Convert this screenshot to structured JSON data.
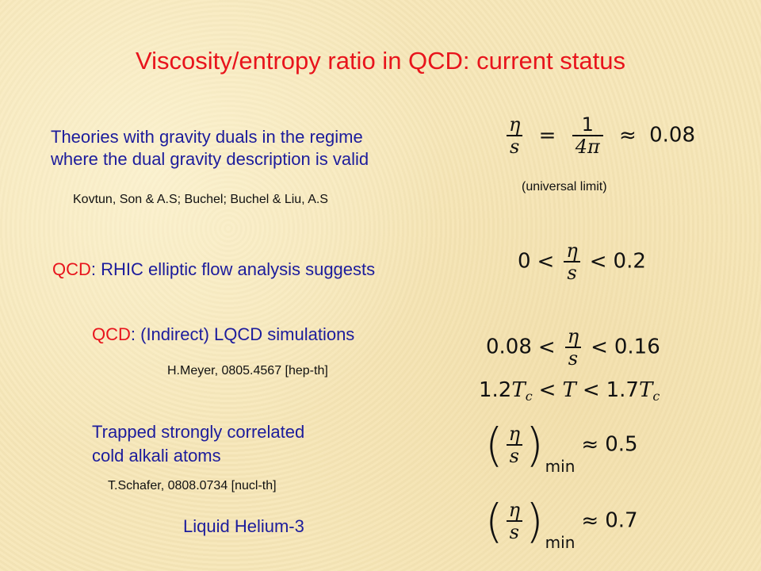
{
  "title": "Viscosity/entropy ratio in QCD: current status",
  "colors": {
    "title": "#e8141c",
    "text_blue": "#1c1c9c",
    "text_red": "#e8141c",
    "background": "#f7e7b8"
  },
  "gravity": {
    "line1": "Theories with gravity duals in the regime",
    "line2": "where the dual gravity description is valid",
    "ref": "Kovtun, Son & A.S; Buchel; Buchel & Liu, A.S",
    "eq": {
      "num": "η",
      "den": "s",
      "eq_sign": "=",
      "c_num": "1",
      "c_den": "4π",
      "approx": "≈",
      "value": "0.08"
    },
    "note": "(universal limit)"
  },
  "rhic": {
    "prefix": "QCD",
    "text": ": RHIC elliptic flow analysis suggests",
    "eq": {
      "lower": "0",
      "lt1": "<",
      "num": "η",
      "den": "s",
      "lt2": "<",
      "upper": "0.2"
    }
  },
  "lqcd": {
    "prefix": "QCD",
    "text": ": (Indirect) LQCD simulations",
    "ref": "H.Meyer, 0805.4567 [hep-th]",
    "eq": {
      "lower": "0.08",
      "lt1": "<",
      "num": "η",
      "den": "s",
      "lt2": "<",
      "upper": "0.16"
    },
    "temp": {
      "c1": "1.2",
      "tc": "T",
      "sub": "c",
      "lt1": "<",
      "t": "T",
      "lt2": "<",
      "c2": "1.7"
    }
  },
  "atoms": {
    "line1": "Trapped strongly correlated",
    "line2": "cold alkali atoms",
    "ref": "T.Schafer, 0808.0734 [nucl-th]",
    "eq": {
      "lp": "(",
      "num": "η",
      "den": "s",
      "rp": ")",
      "sub": "min",
      "approx": "≈",
      "value": "0.5"
    }
  },
  "helium": {
    "label": "Liquid Helium-3",
    "eq": {
      "lp": "(",
      "num": "η",
      "den": "s",
      "rp": ")",
      "sub": "min",
      "approx": "≈",
      "value": "0.7"
    }
  }
}
